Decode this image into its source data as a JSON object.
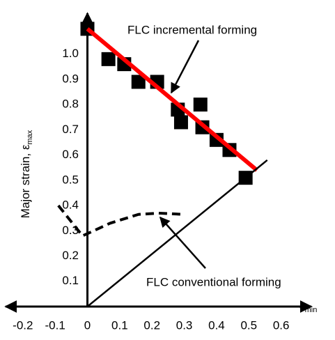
{
  "chart_data": {
    "type": "scatter",
    "xlim": [
      -0.26,
      0.7
    ],
    "ylim": [
      0,
      1.17
    ],
    "xticks": [
      -0.2,
      -0.1,
      0,
      0.1,
      0.2,
      0.3,
      0.4,
      0.5,
      0.6
    ],
    "yticks": [
      0.1,
      0.2,
      0.3,
      0.4,
      0.5,
      0.6,
      0.7,
      0.8,
      0.9,
      {
        "value": 1,
        "label": "1.0"
      }
    ],
    "ylabel": "Major strain, ε",
    "ylabel_sub": "max",
    "xlabel": "ε",
    "xlabel_sub": "min",
    "series": [
      {
        "style": "marker",
        "color": "#000000",
        "x": [
          0,
          0.065,
          0.114,
          0.158,
          0.216,
          0.28,
          0.29,
          0.35,
          0.356,
          0.4,
          0.44,
          0.49
        ],
        "values": [
          1.1,
          0.98,
          0.96,
          0.89,
          0.89,
          0.78,
          0.73,
          0.8,
          0.71,
          0.66,
          0.62,
          0.51
        ]
      },
      {
        "name": "FLC incremental forming",
        "style": "line",
        "color": "#ff0000",
        "width": 6,
        "x": [
          0,
          0.525
        ],
        "values": [
          1.1,
          0.54
        ]
      },
      {
        "name": "FLC conventional forming",
        "style": "dashed",
        "color": "#000000",
        "width": 4,
        "x": [
          -0.09,
          -0.015,
          0.07,
          0.158,
          0.22,
          0.3
        ],
        "values": [
          0.4,
          0.28,
          0.33,
          0.365,
          0.37,
          0.365
        ]
      },
      {
        "style": "line",
        "color": "#000000",
        "width": 2.5,
        "x": [
          0,
          0.557
        ],
        "values": [
          0,
          0.58
        ]
      }
    ]
  }
}
